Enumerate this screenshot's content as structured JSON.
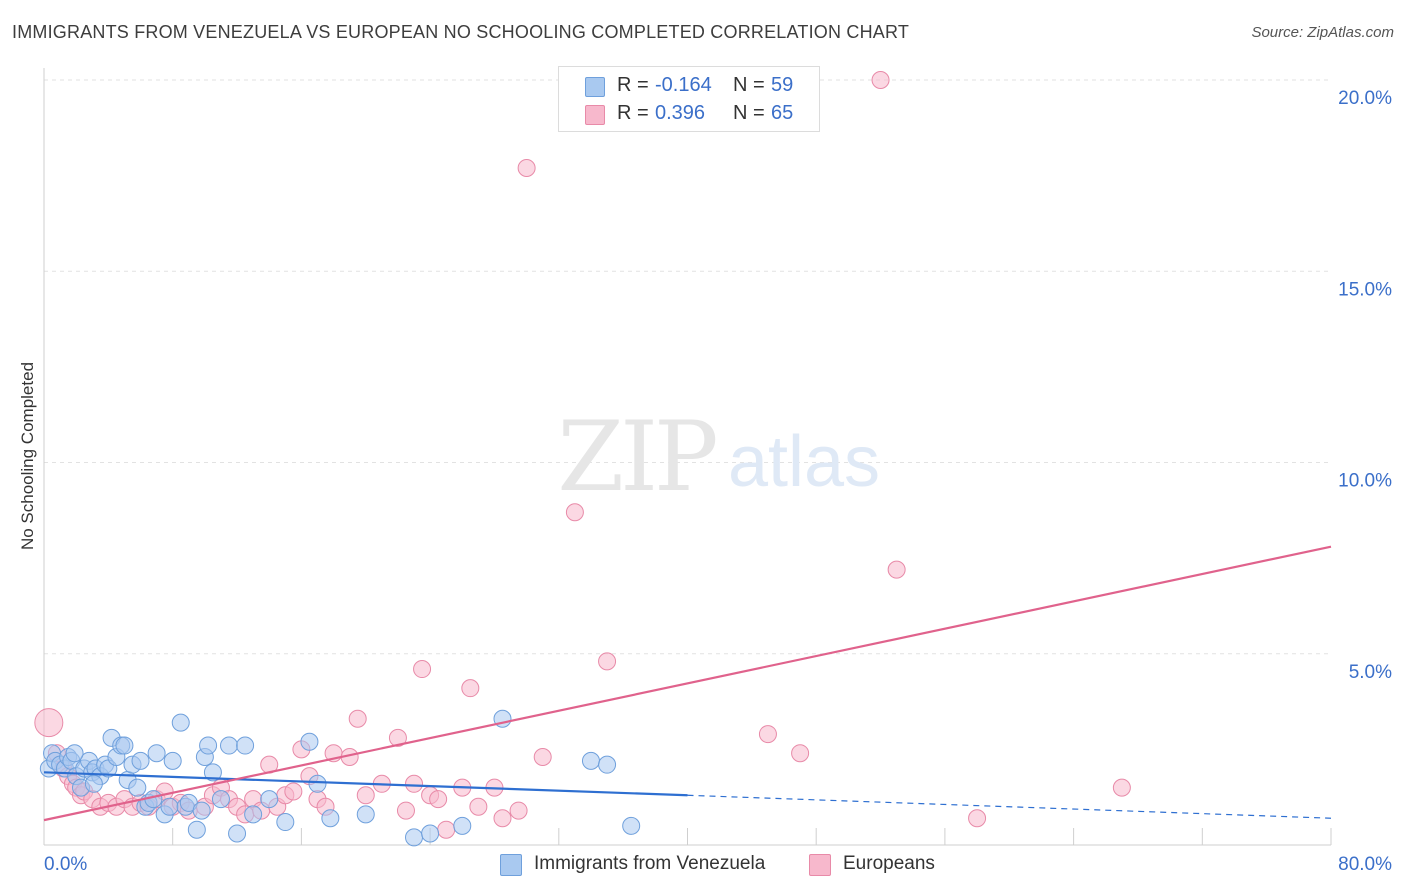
{
  "title": "IMMIGRANTS FROM VENEZUELA VS EUROPEAN NO SCHOOLING COMPLETED CORRELATION CHART",
  "source": "Source: ZipAtlas.com",
  "watermark": {
    "zip": "ZIP",
    "atlas": "atlas"
  },
  "colors": {
    "blue_fill": "#a9c9f0",
    "blue_stroke": "#6fa0dc",
    "blue_line": "#2e6fd1",
    "pink_fill": "#f7b8cc",
    "pink_stroke": "#e88aa8",
    "pink_line": "#e0628c",
    "tick_text": "#3b6fc9",
    "grid": "#e2e2e2"
  },
  "legend": {
    "rows": [
      {
        "r_label": "R =",
        "r_value": "-0.164",
        "n_label": "N =",
        "n_value": "59",
        "color": "#a9c9f0"
      },
      {
        "r_label": "R =",
        "r_value": "0.396",
        "n_label": "N =",
        "n_value": "65",
        "color": "#f7b8cc"
      }
    ]
  },
  "bottom_legend": [
    {
      "label": "Immigrants from Venezuela",
      "color": "#a9c9f0"
    },
    {
      "label": "Europeans",
      "color": "#f7b8cc"
    }
  ],
  "chart_data": {
    "type": "scatter",
    "title": "IMMIGRANTS FROM VENEZUELA VS EUROPEAN NO SCHOOLING COMPLETED CORRELATION CHART",
    "xlabel": "",
    "ylabel": "No Schooling Completed",
    "xlim": [
      0,
      80
    ],
    "ylim": [
      0,
      20
    ],
    "x_tick_labels": [
      {
        "value": 0,
        "label": "0.0%"
      },
      {
        "value": 80,
        "label": "80.0%"
      }
    ],
    "y_tick_labels": [
      {
        "value": 20,
        "label": "20.0%"
      },
      {
        "value": 15,
        "label": "15.0%"
      },
      {
        "value": 10,
        "label": "10.0%"
      },
      {
        "value": 5,
        "label": "5.0%"
      }
    ],
    "series": [
      {
        "name": "Immigrants from Venezuela",
        "color": "#a9c9f0",
        "trend": {
          "x": [
            0,
            40,
            80
          ],
          "y": [
            1.9,
            1.3,
            0.7
          ],
          "solid_until": 40
        },
        "points": [
          [
            0.3,
            2.0
          ],
          [
            0.5,
            2.4
          ],
          [
            0.7,
            2.2
          ],
          [
            1.0,
            2.1
          ],
          [
            1.3,
            2.0
          ],
          [
            1.5,
            2.3
          ],
          [
            1.7,
            2.2
          ],
          [
            2.0,
            1.8
          ],
          [
            2.3,
            1.5
          ],
          [
            2.5,
            2.0
          ],
          [
            2.8,
            2.2
          ],
          [
            3.0,
            1.9
          ],
          [
            3.2,
            2.0
          ],
          [
            3.5,
            1.8
          ],
          [
            3.8,
            2.1
          ],
          [
            4.0,
            2.0
          ],
          [
            4.2,
            2.8
          ],
          [
            4.5,
            2.3
          ],
          [
            4.8,
            2.6
          ],
          [
            5.0,
            2.6
          ],
          [
            5.2,
            1.7
          ],
          [
            5.5,
            2.1
          ],
          [
            5.8,
            1.5
          ],
          [
            6.0,
            2.2
          ],
          [
            6.3,
            1.0
          ],
          [
            6.5,
            1.1
          ],
          [
            6.8,
            1.2
          ],
          [
            7.0,
            2.4
          ],
          [
            7.5,
            0.8
          ],
          [
            7.8,
            1.0
          ],
          [
            8.0,
            2.2
          ],
          [
            8.5,
            3.2
          ],
          [
            8.8,
            1.0
          ],
          [
            9.0,
            1.1
          ],
          [
            9.5,
            0.4
          ],
          [
            10.0,
            2.3
          ],
          [
            10.2,
            2.6
          ],
          [
            10.5,
            1.9
          ],
          [
            11.0,
            1.2
          ],
          [
            11.5,
            2.6
          ],
          [
            12.0,
            0.3
          ],
          [
            12.5,
            2.6
          ],
          [
            13.0,
            0.8
          ],
          [
            14.0,
            1.2
          ],
          [
            15.0,
            0.6
          ],
          [
            16.5,
            2.7
          ],
          [
            17.0,
            1.6
          ],
          [
            17.8,
            0.7
          ],
          [
            20.0,
            0.8
          ],
          [
            23.0,
            0.2
          ],
          [
            24.0,
            0.3
          ],
          [
            26.0,
            0.5
          ],
          [
            28.5,
            3.3
          ],
          [
            34.0,
            2.2
          ],
          [
            35.0,
            2.1
          ],
          [
            36.5,
            0.5
          ],
          [
            9.8,
            0.9
          ],
          [
            3.1,
            1.6
          ],
          [
            1.9,
            2.4
          ]
        ]
      },
      {
        "name": "Europeans",
        "color": "#f7b8cc",
        "trend": {
          "x": [
            0,
            80
          ],
          "y": [
            0.65,
            7.8
          ]
        },
        "points": [
          [
            0.3,
            3.2
          ],
          [
            0.8,
            2.4
          ],
          [
            1.2,
            2.0
          ],
          [
            1.5,
            1.8
          ],
          [
            1.8,
            1.6
          ],
          [
            2.0,
            1.5
          ],
          [
            2.3,
            1.3
          ],
          [
            2.5,
            1.4
          ],
          [
            3.0,
            1.2
          ],
          [
            3.5,
            1.0
          ],
          [
            4.0,
            1.1
          ],
          [
            4.5,
            1.0
          ],
          [
            5.0,
            1.2
          ],
          [
            5.5,
            1.0
          ],
          [
            6.0,
            1.1
          ],
          [
            6.5,
            1.0
          ],
          [
            7.0,
            1.2
          ],
          [
            7.5,
            1.4
          ],
          [
            8.0,
            1.0
          ],
          [
            8.5,
            1.1
          ],
          [
            9.0,
            0.9
          ],
          [
            10.0,
            1.0
          ],
          [
            10.5,
            1.3
          ],
          [
            11.0,
            1.5
          ],
          [
            11.5,
            1.2
          ],
          [
            12.0,
            1.0
          ],
          [
            12.5,
            0.8
          ],
          [
            13.0,
            1.2
          ],
          [
            13.5,
            0.9
          ],
          [
            14.0,
            2.1
          ],
          [
            14.5,
            1.0
          ],
          [
            15.0,
            1.3
          ],
          [
            15.5,
            1.4
          ],
          [
            16.0,
            2.5
          ],
          [
            16.5,
            1.8
          ],
          [
            17.0,
            1.2
          ],
          [
            17.5,
            1.0
          ],
          [
            18.0,
            2.4
          ],
          [
            19.0,
            2.3
          ],
          [
            19.5,
            3.3
          ],
          [
            20.0,
            1.3
          ],
          [
            21.0,
            1.6
          ],
          [
            22.0,
            2.8
          ],
          [
            22.5,
            0.9
          ],
          [
            23.0,
            1.6
          ],
          [
            23.5,
            4.6
          ],
          [
            24.0,
            1.3
          ],
          [
            24.5,
            1.2
          ],
          [
            25.0,
            0.4
          ],
          [
            26.0,
            1.5
          ],
          [
            26.5,
            4.1
          ],
          [
            27.0,
            1.0
          ],
          [
            28.0,
            1.5
          ],
          [
            28.5,
            0.7
          ],
          [
            29.5,
            0.9
          ],
          [
            30.0,
            17.7
          ],
          [
            31.0,
            2.3
          ],
          [
            33.0,
            8.7
          ],
          [
            35.0,
            4.8
          ],
          [
            45.0,
            2.9
          ],
          [
            47.0,
            2.4
          ],
          [
            52.0,
            20.0
          ],
          [
            53.0,
            7.2
          ],
          [
            58.0,
            0.7
          ],
          [
            67.0,
            1.5
          ]
        ]
      }
    ]
  }
}
